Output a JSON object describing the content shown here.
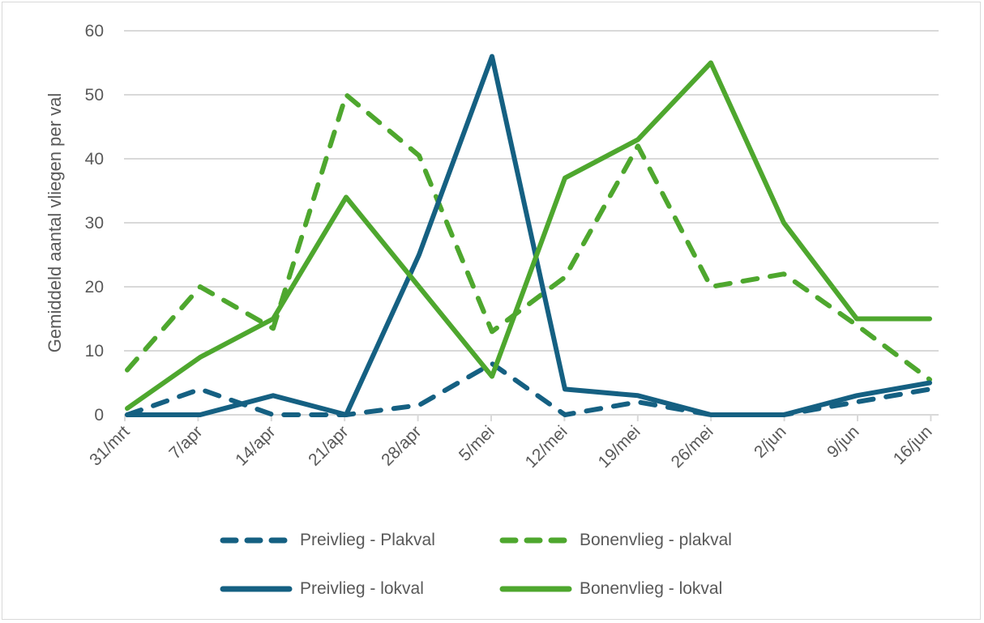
{
  "chart_data": {
    "type": "line",
    "title": "",
    "xlabel": "",
    "ylabel": "Gemiddeld aantal vliegen per val",
    "ylim": [
      0,
      60
    ],
    "yticks": [
      0,
      10,
      20,
      30,
      40,
      50,
      60
    ],
    "grid": true,
    "legend_position": "bottom",
    "categories": [
      "31/mrt",
      "7/apr",
      "14/apr",
      "21/apr",
      "28/apr",
      "5/mei",
      "12/mei",
      "19/mei",
      "26/mei",
      "2/jun",
      "9/jun",
      "16/jun"
    ],
    "series": [
      {
        "name": "Preivlieg - Plakval",
        "color": "#156082",
        "style": "dashed",
        "values": [
          0,
          4,
          0,
          0,
          1.5,
          8,
          0,
          2,
          0,
          0,
          2,
          4
        ]
      },
      {
        "name": "Bonenvlieg - plakval",
        "color": "#4EA72E",
        "style": "dashed",
        "values": [
          7,
          20,
          13.5,
          50,
          40.5,
          13,
          21.5,
          42,
          20,
          22,
          14,
          5.5
        ]
      },
      {
        "name": "Preivlieg - lokval",
        "color": "#156082",
        "style": "solid",
        "values": [
          0,
          0,
          3,
          0,
          25,
          56,
          4,
          3,
          0,
          0,
          3,
          5
        ]
      },
      {
        "name": "Bonenvlieg - lokval",
        "color": "#4EA72E",
        "style": "solid",
        "values": [
          1,
          9,
          15,
          34,
          20,
          6,
          37,
          43,
          55,
          30,
          15,
          15
        ]
      }
    ]
  },
  "legend": {
    "items": [
      {
        "label": "Preivlieg - Plakval"
      },
      {
        "label": "Bonenvlieg - plakval"
      },
      {
        "label": "Preivlieg - lokval"
      },
      {
        "label": "Bonenvlieg - lokval"
      }
    ]
  }
}
